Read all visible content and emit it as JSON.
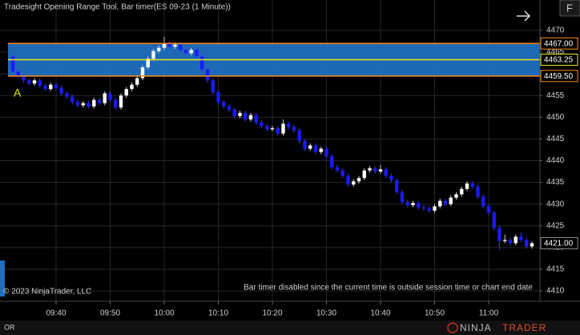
{
  "header": {
    "title": "Tradesight Opening Range Tool, Bar timer(ES 09-23 (1 Minute))",
    "button": "F"
  },
  "footer": {
    "copyright": "© 2023 NinjaTrader, LLC",
    "message": "Bar timer disabled since the current time is outside session time or chart end date",
    "tab": "OR",
    "logo_parts": [
      "NINJA",
      "TRADER"
    ]
  },
  "chart_data": {
    "type": "candlestick",
    "up_color": "#ffffff",
    "down_color": "#1a1aff",
    "grid": true,
    "ylim": [
      4407.8,
      4477
    ],
    "yticks": [
      4410,
      4415,
      4420,
      4425,
      4430,
      4435,
      4440,
      4445,
      4450,
      4455,
      4460,
      4465,
      4470
    ],
    "xticks": [
      "09:40",
      "09:50",
      "10:00",
      "10:10",
      "10:20",
      "10:30",
      "10:40",
      "10:50",
      "11:00"
    ],
    "x": [
      "09:32",
      "09:33",
      "09:34",
      "09:35",
      "09:36",
      "09:37",
      "09:38",
      "09:39",
      "09:40",
      "09:41",
      "09:42",
      "09:43",
      "09:44",
      "09:45",
      "09:46",
      "09:47",
      "09:48",
      "09:49",
      "09:50",
      "09:51",
      "09:52",
      "09:53",
      "09:54",
      "09:55",
      "09:56",
      "09:57",
      "09:58",
      "09:59",
      "10:00",
      "10:01",
      "10:02",
      "10:03",
      "10:04",
      "10:05",
      "10:06",
      "10:07",
      "10:08",
      "10:09",
      "10:10",
      "10:11",
      "10:12",
      "10:13",
      "10:14",
      "10:15",
      "10:16",
      "10:17",
      "10:18",
      "10:19",
      "10:20",
      "10:21",
      "10:22",
      "10:23",
      "10:24",
      "10:25",
      "10:26",
      "10:27",
      "10:28",
      "10:29",
      "10:30",
      "10:31",
      "10:32",
      "10:33",
      "10:34",
      "10:35",
      "10:36",
      "10:37",
      "10:38",
      "10:39",
      "10:40",
      "10:41",
      "10:42",
      "10:43",
      "10:44",
      "10:45",
      "10:46",
      "10:47",
      "10:48",
      "10:49",
      "10:50",
      "10:51",
      "10:52",
      "10:53",
      "10:54",
      "10:55",
      "10:56",
      "10:57",
      "10:58",
      "10:59",
      "11:00",
      "11:01",
      "11:02",
      "11:03",
      "11:04",
      "11:05",
      "11:06",
      "11:07",
      "11:08"
    ],
    "open": [
      4464,
      4460.5,
      4459.5,
      4458.5,
      4457.75,
      4458.5,
      4457.25,
      4456.5,
      4457.5,
      4456.75,
      4455.5,
      4454.75,
      4453.5,
      4452.75,
      4453.25,
      4452.5,
      4454,
      4453.25,
      4455.5,
      4454,
      4452.25,
      4455,
      4456.5,
      4457.5,
      4459,
      4461.5,
      4463.5,
      4465.25,
      4466,
      4467,
      4466.25,
      4466.75,
      4465.5,
      4464.75,
      4465.5,
      4464,
      4461,
      4458.5,
      4455.75,
      4453.5,
      4452.5,
      4451.75,
      4450.25,
      4451,
      4449.5,
      4450.5,
      4448.75,
      4448,
      4447.25,
      4447.5,
      4446.25,
      4448.5,
      4447.75,
      4447,
      4444.5,
      4442.75,
      4443.5,
      4442,
      4442.75,
      4441,
      4438.5,
      4437.75,
      4436.5,
      4434.5,
      4435.25,
      4436,
      4437.75,
      4438.25,
      4437.5,
      4438,
      4436.5,
      4435.5,
      4432.75,
      4430.5,
      4429.75,
      4430.25,
      4429.25,
      4429,
      4428.5,
      4429.5,
      4430.75,
      4430,
      4431.5,
      4432.25,
      4433.5,
      4434.75,
      4434,
      4431.75,
      4429.5,
      4428,
      4424.5,
      4421.5,
      4421.75,
      4421,
      4422.5,
      4421.75,
      4420.25
    ],
    "high": [
      4464.5,
      4461,
      4460,
      4459,
      4459,
      4459,
      4457.75,
      4458,
      4458,
      4457.25,
      4456,
      4455.25,
      4454,
      4453.75,
      4453.75,
      4454.5,
      4454.5,
      4456,
      4456,
      4454.5,
      4455.5,
      4457,
      4458,
      4459.5,
      4462,
      4464,
      4465.75,
      4466.5,
      4468.5,
      4467.5,
      4467.25,
      4467.25,
      4466,
      4466,
      4466,
      4464.5,
      4461.5,
      4459,
      4456.25,
      4454,
      4453,
      4452.25,
      4451.5,
      4451.5,
      4451,
      4451,
      4449.25,
      4448.5,
      4448,
      4448,
      4449.5,
      4449,
      4448.25,
      4447.5,
      4445,
      4444,
      4444,
      4443.25,
      4443.25,
      4441.5,
      4439,
      4438.25,
      4437,
      4435.75,
      4436.5,
      4438.25,
      4438.75,
      4438.75,
      4439,
      4438.5,
      4437,
      4436,
      4433.25,
      4431,
      4430.75,
      4430.75,
      4429.75,
      4429.5,
      4430,
      4431.25,
      4431.25,
      4432,
      4432.75,
      4434,
      4435.25,
      4435.25,
      4434.5,
      4432.25,
      4430,
      4428.5,
      4425,
      4423,
      4422.25,
      4423,
      4423.5,
      4422.25,
      4421.5
    ],
    "low": [
      4460,
      4459,
      4458,
      4457.25,
      4457.25,
      4456.75,
      4456,
      4456,
      4456.25,
      4455,
      4454.25,
      4453,
      4452.25,
      4452.25,
      4452,
      4452,
      4452.75,
      4452.75,
      4453.5,
      4451.75,
      4451.75,
      4454.5,
      4456,
      4457,
      4458.5,
      4461,
      4463,
      4464.75,
      4465.5,
      4465.75,
      4465.75,
      4465,
      4464.25,
      4464.25,
      4463.5,
      4460.5,
      4458,
      4455.25,
      4453,
      4452,
      4451.25,
      4449.75,
      4449.75,
      4449,
      4449,
      4448.25,
      4447.5,
      4446.75,
      4446.75,
      4445.75,
      4445.75,
      4447.25,
      4446.5,
      4444,
      4442.25,
      4442.25,
      4441.5,
      4441.5,
      4440.5,
      4438,
      4437.25,
      4436,
      4434,
      4434,
      4434.75,
      4435.5,
      4437.25,
      4437,
      4437,
      4436,
      4435,
      4432.25,
      4430,
      4429.25,
      4429.25,
      4428.75,
      4428.5,
      4428,
      4428,
      4429,
      4429.5,
      4429.5,
      4431,
      4431.75,
      4433,
      4433.5,
      4431.25,
      4429,
      4427.5,
      4424,
      4419.5,
      4421,
      4420.5,
      4420.5,
      4421.25,
      4419.75,
      4419.75
    ],
    "close": [
      4460.5,
      4459.5,
      4458.5,
      4457.75,
      4458.5,
      4457.25,
      4456.5,
      4457.5,
      4456.75,
      4455.5,
      4454.75,
      4453.5,
      4452.75,
      4453.25,
      4452.5,
      4454,
      4453.25,
      4455.5,
      4454,
      4452.25,
      4455,
      4456.5,
      4457.5,
      4459,
      4461.5,
      4463.5,
      4465.25,
      4466,
      4467,
      4466.25,
      4466.75,
      4465.5,
      4464.75,
      4465.5,
      4464,
      4461,
      4458.5,
      4455.75,
      4453.5,
      4452.5,
      4451.75,
      4450.25,
      4451,
      4449.5,
      4450.5,
      4448.75,
      4448,
      4447.25,
      4447.5,
      4446.25,
      4448.5,
      4447.75,
      4447,
      4444.5,
      4442.75,
      4443.5,
      4442,
      4442.75,
      4441,
      4438.5,
      4437.75,
      4436.5,
      4434.5,
      4435.25,
      4436,
      4437.75,
      4438.25,
      4437.5,
      4438,
      4436.5,
      4435.5,
      4432.75,
      4430.5,
      4429.75,
      4430.25,
      4429.25,
      4429,
      4428.5,
      4429.5,
      4430.75,
      4430,
      4431.5,
      4432.25,
      4433.5,
      4434.75,
      4434,
      4431.75,
      4429.5,
      4428,
      4424.5,
      4421.5,
      4421.75,
      4421,
      4422.5,
      4421.75,
      4420.25,
      4421
    ],
    "opening_range": {
      "label": "A",
      "fill": "#1f6fc0",
      "edge_color": "#ff8c1a",
      "mid_color": "#e8e820",
      "high": {
        "value": 4467,
        "label": "4467.00"
      },
      "mid": {
        "value": 4463.25,
        "label": "4463.25"
      },
      "low": {
        "value": 4459.5,
        "label": "4459.50"
      }
    },
    "last_price": {
      "value": 4421,
      "label": "4421.00"
    }
  }
}
